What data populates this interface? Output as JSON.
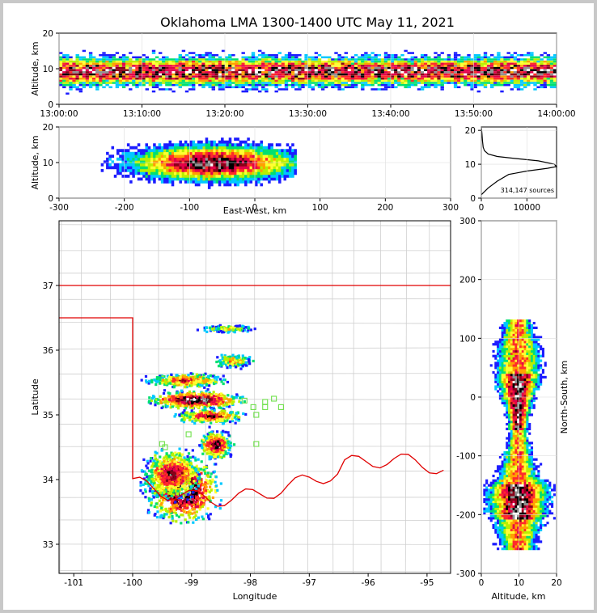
{
  "figure": {
    "title": "Oklahoma LMA 1300-1400 UTC May 11, 2021",
    "source_count_label": "314,147 sources"
  },
  "chart_data": [
    {
      "type": "heatmap",
      "panel": "altitude-time",
      "xlabel": "",
      "ylabel": "Altitude, km",
      "x_ticks": [
        "13:00:00",
        "13:10:00",
        "13:20:00",
        "13:30:00",
        "13:40:00",
        "13:50:00",
        "14:00:00"
      ],
      "xlim": [
        "13:00:00",
        "14:00:00"
      ],
      "ylim": [
        0,
        20
      ],
      "y_ticks": [
        0,
        10,
        20
      ],
      "peak_altitude_km": 9
    },
    {
      "type": "heatmap",
      "panel": "altitude-east-west",
      "xlabel": "East-West, km",
      "ylabel": "Altitude, km",
      "xlim": [
        -300,
        300
      ],
      "x_ticks": [
        -300,
        -200,
        -100,
        0,
        100,
        200,
        300
      ],
      "ylim": [
        0,
        20
      ],
      "y_ticks": [
        0,
        10,
        20
      ],
      "source_extent_km": [
        -240,
        60
      ],
      "core_km": [
        -110,
        -20
      ]
    },
    {
      "type": "line",
      "panel": "altitude-histogram",
      "xlabel": "",
      "ylabel": "",
      "xlim": [
        0,
        16500
      ],
      "x_ticks": [
        0,
        10000
      ],
      "ylim": [
        0,
        21
      ],
      "y_ticks": [
        0,
        10,
        20
      ],
      "x": [
        0,
        1500,
        3500,
        6000,
        10000,
        14500,
        16500,
        16000,
        12500,
        7500,
        3500,
        1500,
        700,
        400,
        250,
        150,
        0
      ],
      "y": [
        1,
        3,
        5,
        7,
        8,
        8.8,
        9.3,
        10,
        11,
        11.7,
        12.3,
        13,
        14,
        15,
        17,
        19,
        21
      ]
    },
    {
      "type": "heatmap",
      "panel": "map",
      "xlabel": "Longitude",
      "ylabel": "Latitude",
      "xlim": [
        -101.25,
        -94.6
      ],
      "x_ticks": [
        -101,
        -100,
        -99,
        -98,
        -97,
        -96,
        -95
      ],
      "ylim": [
        32.55,
        38.0
      ],
      "y_ticks": [
        33,
        34,
        35,
        36,
        37
      ],
      "boundary_color": "#e00000",
      "station_color": "#6ee04a",
      "stations": [
        [
          -97.6,
          35.25
        ],
        [
          -97.75,
          35.2
        ],
        [
          -98.1,
          35.22
        ],
        [
          -97.95,
          35.12
        ],
        [
          -97.75,
          35.12
        ],
        [
          -97.48,
          35.12
        ],
        [
          -97.9,
          35.0
        ],
        [
          -99.5,
          34.55
        ],
        [
          -99.45,
          34.5
        ],
        [
          -99.05,
          34.7
        ],
        [
          -97.9,
          34.55
        ]
      ]
    },
    {
      "type": "heatmap",
      "panel": "north-south",
      "xlabel": "Altitude, km",
      "ylabel": "North-South, km",
      "xlim": [
        0,
        20
      ],
      "x_ticks": [
        0,
        10,
        20
      ],
      "ylim": [
        -300,
        300
      ],
      "y_ticks": [
        -300,
        -200,
        -100,
        0,
        100,
        200,
        300
      ],
      "source_extent_km": [
        -260,
        130
      ],
      "core_km": [
        -220,
        40
      ]
    }
  ]
}
